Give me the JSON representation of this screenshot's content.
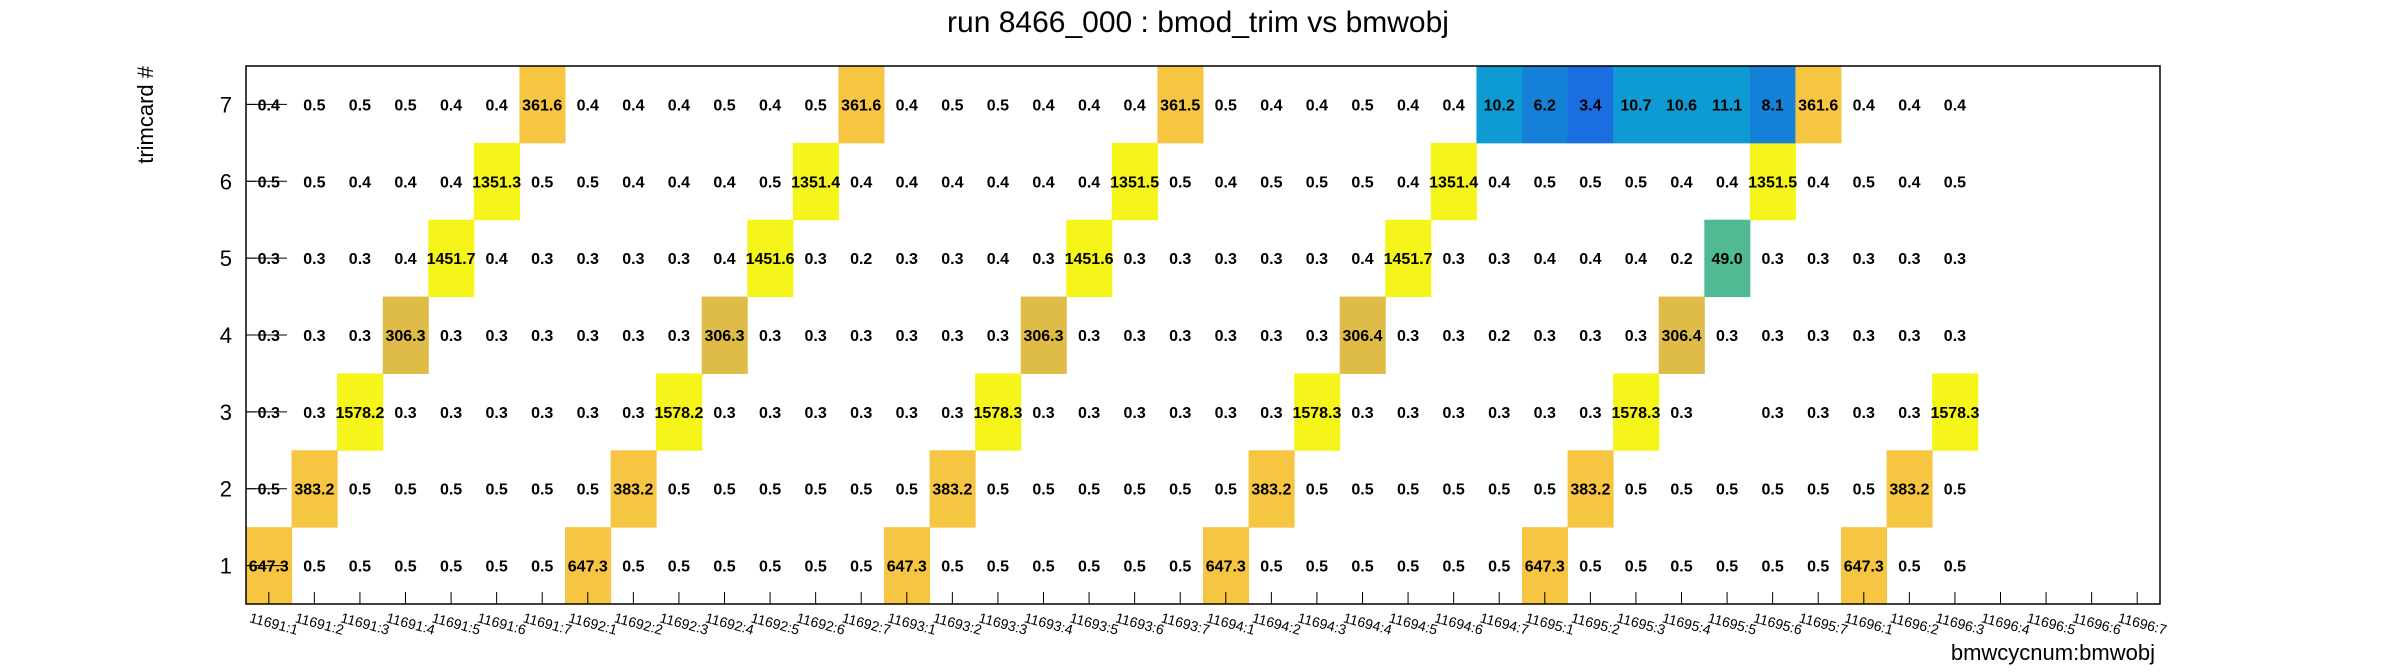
{
  "chart_data": {
    "type": "heatmap",
    "title": "run 8466_000 : bmod_trim vs bmwobj",
    "xlabel": "bmwcycnum:bmwobj",
    "ylabel": "trimcard #",
    "y_categories": [
      "1",
      "2",
      "3",
      "4",
      "5",
      "6",
      "7"
    ],
    "x_categories": [
      "11691:1",
      "11691:2",
      "11691:3",
      "11691:4",
      "11691:5",
      "11691:6",
      "11691:7",
      "11692:1",
      "11692:2",
      "11692:3",
      "11692:4",
      "11692:5",
      "11692:6",
      "11692:7",
      "11693:1",
      "11693:2",
      "11693:3",
      "11693:4",
      "11693:5",
      "11693:6",
      "11693:7",
      "11694:1",
      "11694:2",
      "11694:3",
      "11694:4",
      "11694:5",
      "11694:6",
      "11694:7",
      "11695:1",
      "11695:2",
      "11695:3",
      "11695:4",
      "11695:5",
      "11695:6",
      "11695:7",
      "11696:1",
      "11696:2",
      "11696:3",
      "11696:4",
      "11696:5",
      "11696:6",
      "11696:7"
    ],
    "rows": [
      {
        "trimcard": "1",
        "values": [
          647.3,
          0.5,
          0.5,
          0.5,
          0.5,
          0.5,
          0.5,
          647.3,
          0.5,
          0.5,
          0.5,
          0.5,
          0.5,
          0.5,
          647.3,
          0.5,
          0.5,
          0.5,
          0.5,
          0.5,
          0.5,
          647.3,
          0.5,
          0.5,
          0.5,
          0.5,
          0.5,
          0.5,
          647.3,
          0.5,
          0.5,
          0.5,
          0.5,
          0.5,
          0.5,
          647.3,
          0.5,
          0.5,
          null,
          null,
          null,
          null
        ]
      },
      {
        "trimcard": "2",
        "values": [
          0.5,
          383.2,
          0.5,
          0.5,
          0.5,
          0.5,
          0.5,
          0.5,
          383.2,
          0.5,
          0.5,
          0.5,
          0.5,
          0.5,
          0.5,
          383.2,
          0.5,
          0.5,
          0.5,
          0.5,
          0.5,
          0.5,
          383.2,
          0.5,
          0.5,
          0.5,
          0.5,
          0.5,
          0.5,
          383.2,
          0.5,
          0.5,
          0.5,
          0.5,
          0.5,
          0.5,
          383.2,
          0.5,
          null,
          null,
          null,
          null
        ]
      },
      {
        "trimcard": "3",
        "values": [
          0.3,
          0.3,
          1578.2,
          0.3,
          0.3,
          0.3,
          0.3,
          0.3,
          0.3,
          1578.2,
          0.3,
          0.3,
          0.3,
          0.3,
          0.3,
          0.3,
          1578.3,
          0.3,
          0.3,
          0.3,
          0.3,
          0.3,
          0.3,
          1578.3,
          0.3,
          0.3,
          0.3,
          0.3,
          0.3,
          0.3,
          1578.3,
          0.3,
          null,
          0.3,
          0.3,
          0.3,
          0.3,
          1578.3,
          null,
          null,
          null,
          null
        ]
      },
      {
        "trimcard": "4",
        "values": [
          0.3,
          0.3,
          0.3,
          306.3,
          0.3,
          0.3,
          0.3,
          0.3,
          0.3,
          0.3,
          306.3,
          0.3,
          0.3,
          0.3,
          0.3,
          0.3,
          0.3,
          306.3,
          0.3,
          0.3,
          0.3,
          0.3,
          0.3,
          0.3,
          306.4,
          0.3,
          0.3,
          0.2,
          0.3,
          0.3,
          0.3,
          306.4,
          0.3,
          0.3,
          0.3,
          0.3,
          0.3,
          0.3,
          null,
          null,
          null,
          null
        ]
      },
      {
        "trimcard": "5",
        "values": [
          0.3,
          0.3,
          0.3,
          0.4,
          1451.7,
          0.4,
          0.3,
          0.3,
          0.3,
          0.3,
          0.4,
          1451.6,
          0.3,
          0.2,
          0.3,
          0.3,
          0.4,
          0.3,
          1451.6,
          0.3,
          0.3,
          0.3,
          0.3,
          0.3,
          0.4,
          1451.7,
          0.3,
          0.3,
          0.4,
          0.4,
          0.4,
          0.2,
          49.0,
          0.3,
          0.3,
          0.3,
          0.3,
          0.3,
          null,
          null,
          null,
          null
        ]
      },
      {
        "trimcard": "6",
        "values": [
          0.5,
          0.5,
          0.4,
          0.4,
          0.4,
          1351.3,
          0.5,
          0.5,
          0.4,
          0.4,
          0.4,
          0.5,
          1351.4,
          0.4,
          0.4,
          0.4,
          0.4,
          0.4,
          0.4,
          1351.5,
          0.5,
          0.4,
          0.5,
          0.5,
          0.5,
          0.4,
          1351.4,
          0.4,
          0.5,
          0.5,
          0.5,
          0.4,
          0.4,
          1351.5,
          0.4,
          0.5,
          0.4,
          0.5,
          null,
          null,
          null,
          null
        ]
      },
      {
        "trimcard": "7",
        "values": [
          0.4,
          0.5,
          0.5,
          0.5,
          0.4,
          0.4,
          361.6,
          0.4,
          0.4,
          0.4,
          0.5,
          0.4,
          0.5,
          361.6,
          0.4,
          0.5,
          0.5,
          0.4,
          0.4,
          0.4,
          361.5,
          0.5,
          0.4,
          0.4,
          0.5,
          0.4,
          0.4,
          10.2,
          6.2,
          3.4,
          10.7,
          10.6,
          11.1,
          8.1,
          361.6,
          0.4,
          0.4,
          0.4,
          null,
          null,
          null,
          null
        ]
      }
    ],
    "palette": {
      "yellow": "#f5f519",
      "gold": "#f6c542",
      "tan": "#dfbb48",
      "teal_green": "#52ba92",
      "blue": "#0e9bd3",
      "mid_blue": "#1580d8",
      "deep_blue": "#1a6ee0"
    }
  }
}
